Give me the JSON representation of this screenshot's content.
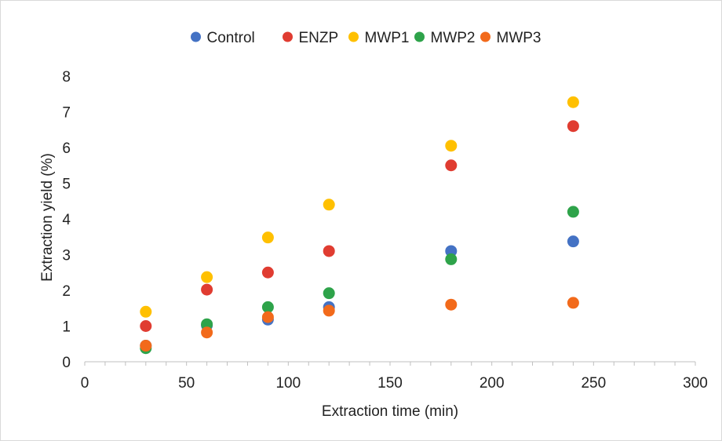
{
  "chart_data": {
    "type": "scatter",
    "xlabel": "Extraction time (min)",
    "ylabel": "Extraction yield (%)",
    "xlim": [
      0,
      300
    ],
    "ylim": [
      0,
      8
    ],
    "x_ticks": [
      0,
      50,
      100,
      150,
      200,
      250,
      300
    ],
    "y_ticks": [
      0,
      1,
      2,
      3,
      4,
      5,
      6,
      7,
      8
    ],
    "grid": false,
    "legend_position": "top",
    "x": [
      30,
      60,
      90,
      120,
      180,
      240
    ],
    "series": [
      {
        "name": "Control",
        "color": "#4472C4",
        "values": [
          0.45,
          1.02,
          1.18,
          1.53,
          3.1,
          3.37
        ]
      },
      {
        "name": "ENZP",
        "color": "#E03C31",
        "values": [
          1.0,
          2.02,
          2.5,
          3.1,
          5.5,
          6.6
        ]
      },
      {
        "name": "MWP1",
        "color": "#FFC000",
        "values": [
          1.4,
          2.37,
          3.48,
          4.4,
          6.05,
          7.27
        ]
      },
      {
        "name": "MWP2",
        "color": "#2EA34A",
        "values": [
          0.38,
          1.05,
          1.53,
          1.92,
          2.87,
          4.2
        ]
      },
      {
        "name": "MWP3",
        "color": "#F26A1B",
        "values": [
          0.45,
          0.82,
          1.25,
          1.43,
          1.6,
          1.65
        ]
      }
    ]
  }
}
